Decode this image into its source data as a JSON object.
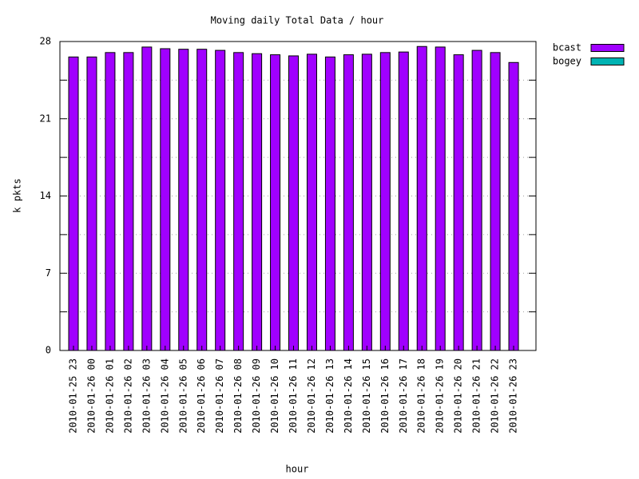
{
  "chart_data": {
    "type": "bar",
    "stacked": true,
    "title": "Moving daily Total Data / hour",
    "x_label": "hour",
    "y_label": "k pkts",
    "categories": [
      "2010-01-25 23",
      "2010-01-26 00",
      "2010-01-26 01",
      "2010-01-26 02",
      "2010-01-26 03",
      "2010-01-26 04",
      "2010-01-26 05",
      "2010-01-26 06",
      "2010-01-26 07",
      "2010-01-26 08",
      "2010-01-26 09",
      "2010-01-26 10",
      "2010-01-26 11",
      "2010-01-26 12",
      "2010-01-26 13",
      "2010-01-26 14",
      "2010-01-26 15",
      "2010-01-26 16",
      "2010-01-26 17",
      "2010-01-26 18",
      "2010-01-26 19",
      "2010-01-26 20",
      "2010-01-26 21",
      "2010-01-26 22",
      "2010-01-26 23"
    ],
    "series": [
      {
        "name": "bcast",
        "color": "#a000ff",
        "values": [
          26.6,
          26.6,
          27.0,
          27.0,
          27.5,
          27.35,
          27.3,
          27.3,
          27.2,
          27.0,
          26.9,
          26.8,
          26.7,
          26.85,
          26.6,
          26.8,
          26.85,
          27.0,
          27.05,
          27.55,
          27.5,
          26.8,
          27.2,
          27.0,
          26.1
        ]
      },
      {
        "name": "bogey",
        "color": "#00b3b3",
        "values": [
          0,
          0,
          0,
          0,
          0,
          0,
          0,
          0,
          0,
          0,
          0,
          0,
          0,
          0,
          0,
          0,
          0,
          0,
          0,
          0,
          0,
          0,
          0,
          0,
          0
        ]
      }
    ],
    "ylim": [
      0,
      28
    ],
    "yticks": [
      0,
      7,
      14,
      21,
      28
    ],
    "minor_yticks": [
      3.5,
      10.5,
      17.5,
      24.5
    ],
    "grid": true,
    "legend": "outside-right"
  }
}
